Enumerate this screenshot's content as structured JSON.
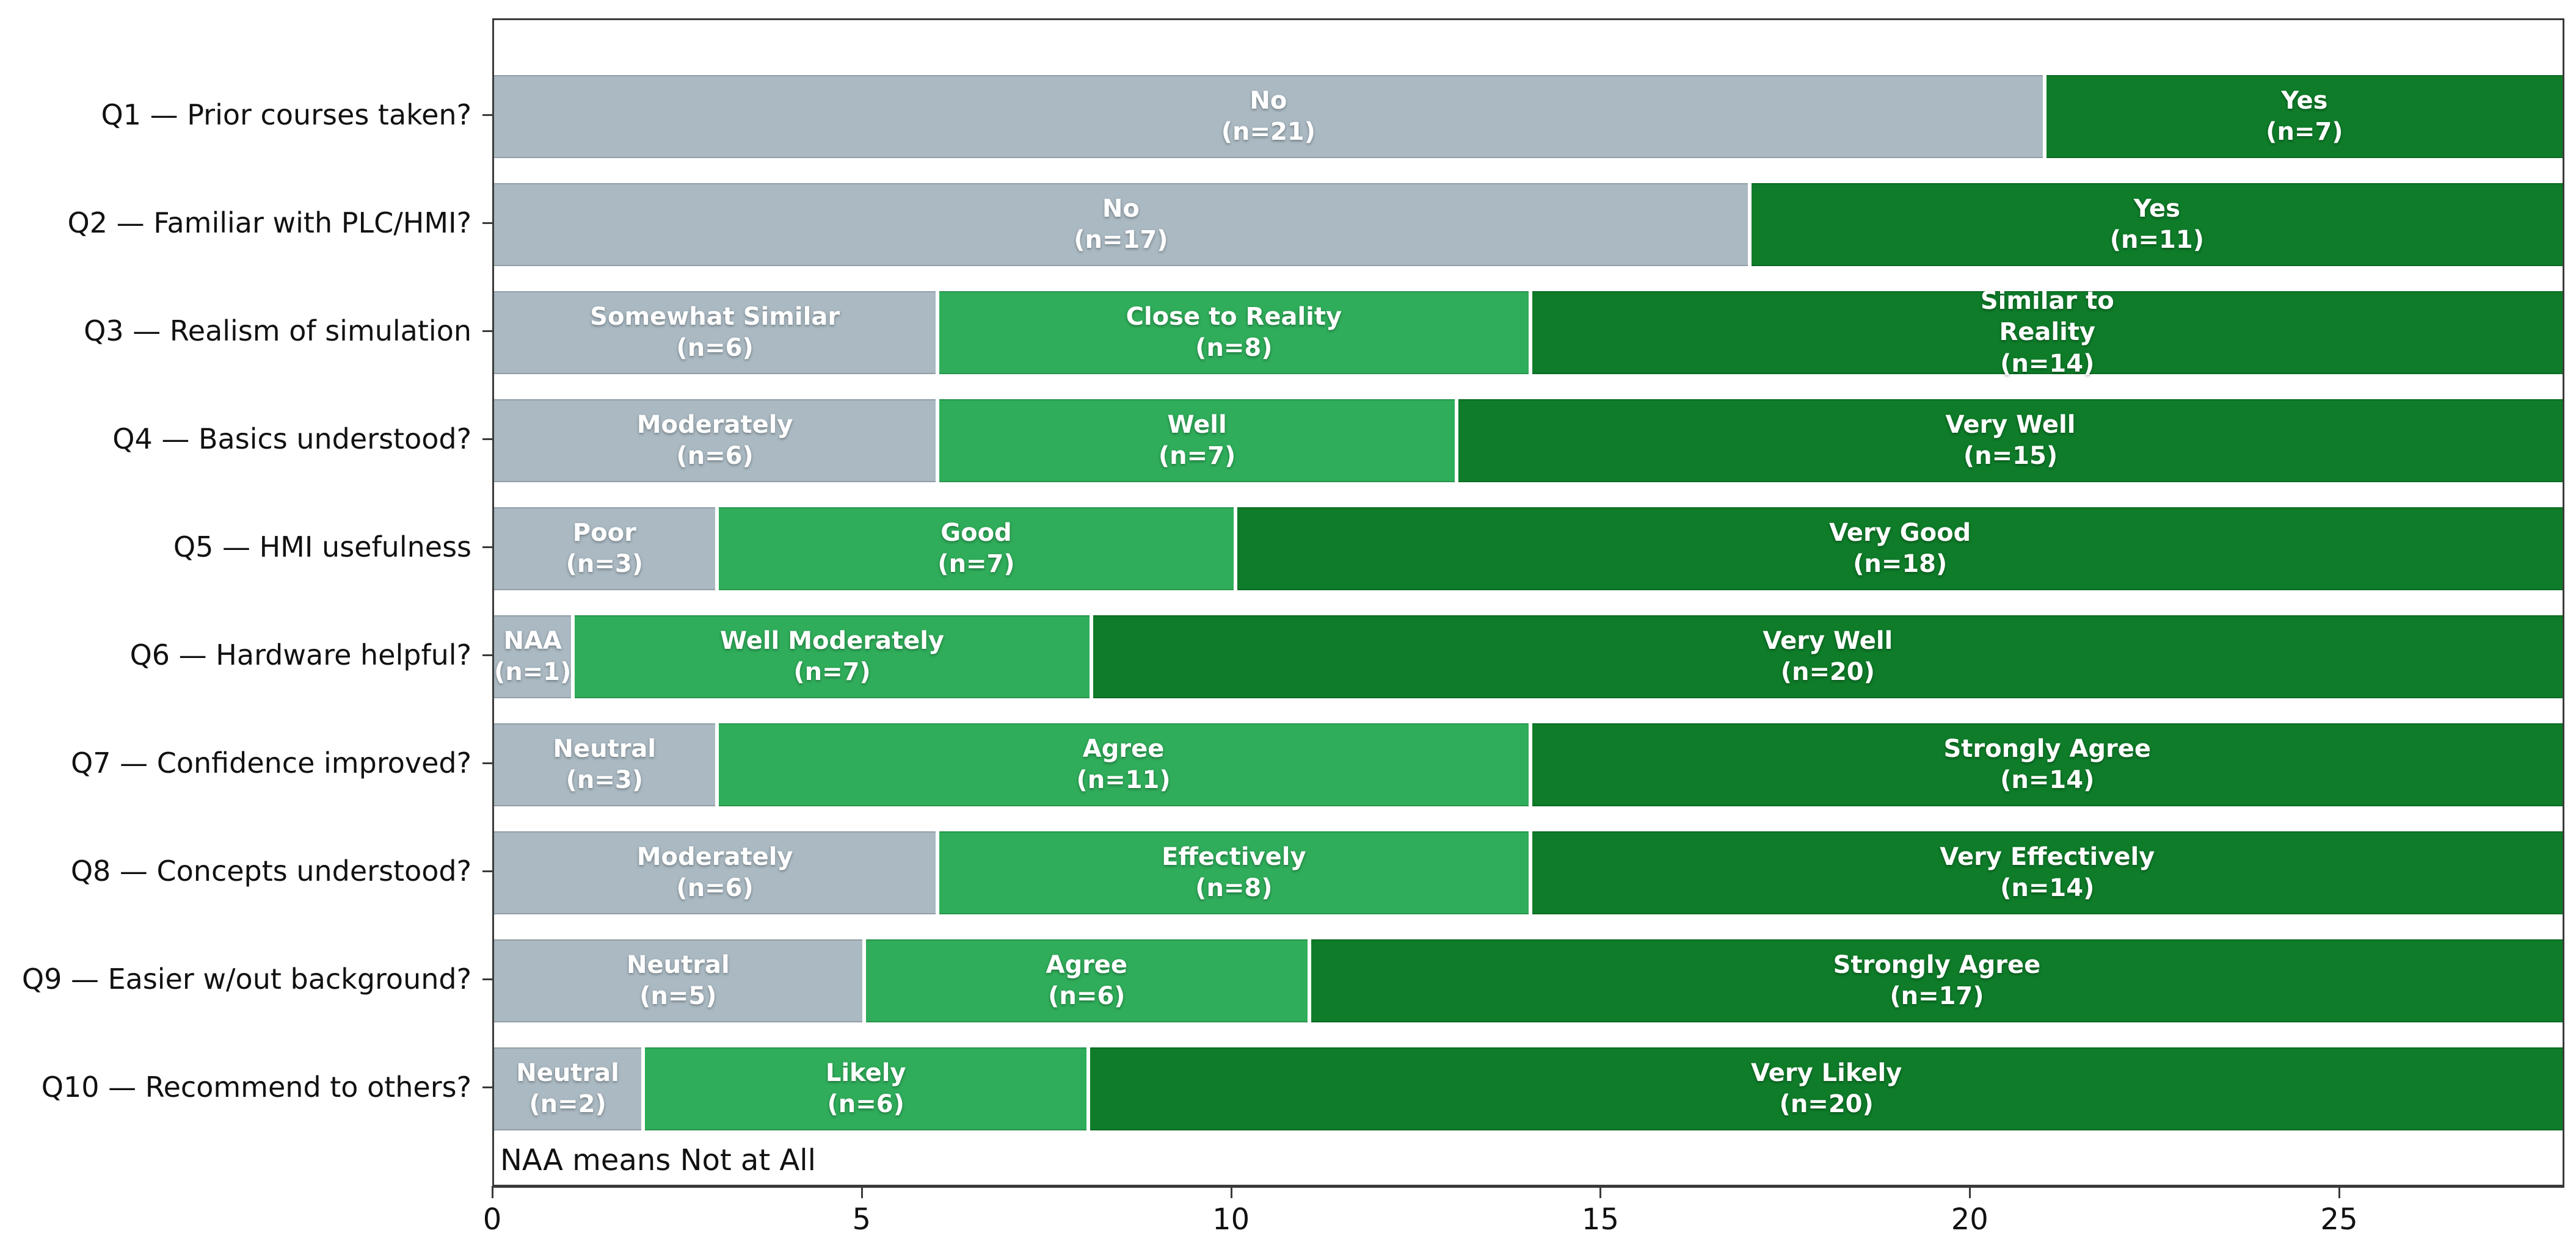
{
  "figure": {
    "background": "#ffffff",
    "frame_color": "#3a3a3a"
  },
  "chart_data": {
    "type": "bar",
    "orientation": "horizontal-stacked",
    "title": "",
    "xlabel": "",
    "ylabel": "",
    "xlim": [
      0,
      28
    ],
    "x_ticks": [
      0,
      5,
      10,
      15,
      20,
      25
    ],
    "grid": false,
    "legend": "none",
    "total_per_row": 28,
    "colors": {
      "gray": "#aab9c2",
      "green": "#2fad5a",
      "dark_green": "#0e7c29"
    },
    "rows": [
      {
        "question": "Q1 — Prior courses taken?",
        "segments": [
          {
            "label": "No",
            "n": 21,
            "color": "gray",
            "lines": [
              "No",
              "(n=21)"
            ]
          },
          {
            "label": "Yes",
            "n": 7,
            "color": "dark_green",
            "lines": [
              "Yes",
              "(n=7)"
            ]
          }
        ]
      },
      {
        "question": "Q2 — Familiar with PLC/HMI?",
        "segments": [
          {
            "label": "No",
            "n": 17,
            "color": "gray",
            "lines": [
              "No",
              "(n=17)"
            ]
          },
          {
            "label": "Yes",
            "n": 11,
            "color": "dark_green",
            "lines": [
              "Yes",
              "(n=11)"
            ]
          }
        ]
      },
      {
        "question": "Q3 — Realism of simulation",
        "segments": [
          {
            "label": "Somewhat Similar",
            "n": 6,
            "color": "gray",
            "lines": [
              "Somewhat Similar",
              "(n=6)"
            ]
          },
          {
            "label": "Close to Reality",
            "n": 8,
            "color": "green",
            "lines": [
              "Close to Reality",
              "(n=8)"
            ]
          },
          {
            "label": "Similar to Reality",
            "n": 14,
            "color": "dark_green",
            "lines": [
              "Similar to",
              "Reality",
              "(n=14)"
            ]
          }
        ]
      },
      {
        "question": "Q4 — Basics understood?",
        "segments": [
          {
            "label": "Moderately",
            "n": 6,
            "color": "gray",
            "lines": [
              "Moderately",
              "(n=6)"
            ]
          },
          {
            "label": "Well",
            "n": 7,
            "color": "green",
            "lines": [
              "Well",
              "(n=7)"
            ]
          },
          {
            "label": "Very Well",
            "n": 15,
            "color": "dark_green",
            "lines": [
              "Very Well",
              "(n=15)"
            ]
          }
        ]
      },
      {
        "question": "Q5 — HMI usefulness",
        "segments": [
          {
            "label": "Poor",
            "n": 3,
            "color": "gray",
            "lines": [
              "Poor",
              "(n=3)"
            ]
          },
          {
            "label": "Good",
            "n": 7,
            "color": "green",
            "lines": [
              "Good",
              "(n=7)"
            ]
          },
          {
            "label": "Very Good",
            "n": 18,
            "color": "dark_green",
            "lines": [
              "Very Good",
              "(n=18)"
            ]
          }
        ]
      },
      {
        "question": "Q6 — Hardware helpful?",
        "segments": [
          {
            "label": "NAA",
            "n": 1,
            "color": "gray",
            "lines": [
              "NAA",
              "(n=1)"
            ]
          },
          {
            "label": "Well Moderately",
            "n": 7,
            "color": "green",
            "lines": [
              "Well Moderately",
              "(n=7)"
            ]
          },
          {
            "label": "Very Well",
            "n": 20,
            "color": "dark_green",
            "lines": [
              "Very Well",
              "(n=20)"
            ]
          }
        ]
      },
      {
        "question": "Q7 — Confidence improved?",
        "segments": [
          {
            "label": "Neutral",
            "n": 3,
            "color": "gray",
            "lines": [
              "Neutral",
              "(n=3)"
            ]
          },
          {
            "label": "Agree",
            "n": 11,
            "color": "green",
            "lines": [
              "Agree",
              "(n=11)"
            ]
          },
          {
            "label": "Strongly Agree",
            "n": 14,
            "color": "dark_green",
            "lines": [
              "Strongly Agree",
              "(n=14)"
            ]
          }
        ]
      },
      {
        "question": "Q8 — Concepts understood?",
        "segments": [
          {
            "label": "Moderately",
            "n": 6,
            "color": "gray",
            "lines": [
              "Moderately",
              "(n=6)"
            ]
          },
          {
            "label": "Effectively",
            "n": 8,
            "color": "green",
            "lines": [
              "Effectively",
              "(n=8)"
            ]
          },
          {
            "label": "Very Effectively",
            "n": 14,
            "color": "dark_green",
            "lines": [
              "Very Effectively",
              "(n=14)"
            ]
          }
        ]
      },
      {
        "question": "Q9 — Easier w/out background?",
        "segments": [
          {
            "label": "Neutral",
            "n": 5,
            "color": "gray",
            "lines": [
              "Neutral",
              "(n=5)"
            ]
          },
          {
            "label": "Agree",
            "n": 6,
            "color": "green",
            "lines": [
              "Agree",
              "(n=6)"
            ]
          },
          {
            "label": "Strongly Agree",
            "n": 17,
            "color": "dark_green",
            "lines": [
              "Strongly Agree",
              "(n=17)"
            ]
          }
        ]
      },
      {
        "question": "Q10 — Recommend to others?",
        "segments": [
          {
            "label": "Neutral",
            "n": 2,
            "color": "gray",
            "lines": [
              "Neutral",
              "(n=2)"
            ]
          },
          {
            "label": "Likely",
            "n": 6,
            "color": "green",
            "lines": [
              "Likely",
              "(n=6)"
            ]
          },
          {
            "label": "Very Likely",
            "n": 20,
            "color": "dark_green",
            "lines": [
              "Very Likely",
              "(n=20)"
            ]
          }
        ]
      }
    ],
    "annotations": {
      "note": "NAA means Not at All"
    }
  }
}
